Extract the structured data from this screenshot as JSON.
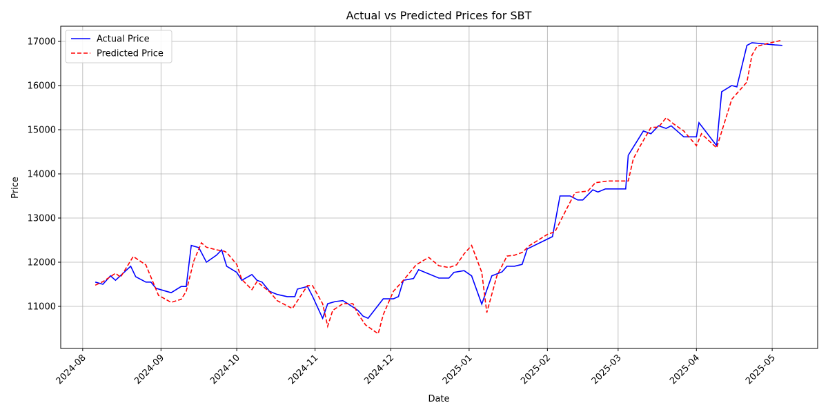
{
  "chart_data": {
    "type": "line",
    "title": "Actual vs Predicted Prices for SBT",
    "x_label": "Date",
    "y_label": "Price",
    "xlim": [
      -8.7,
      291
    ],
    "xticks": [
      {
        "value": 0,
        "label": "2024-08"
      },
      {
        "value": 31,
        "label": "2024-09"
      },
      {
        "value": 61,
        "label": "2024-10"
      },
      {
        "value": 92,
        "label": "2024-11"
      },
      {
        "value": 122,
        "label": "2024-12"
      },
      {
        "value": 153,
        "label": "2025-01"
      },
      {
        "value": 184,
        "label": "2025-02"
      },
      {
        "value": 212,
        "label": "2025-03"
      },
      {
        "value": 243,
        "label": "2025-04"
      },
      {
        "value": 273,
        "label": "2025-05"
      }
    ],
    "ylim": [
      10047,
      17344
    ],
    "yticks": [
      11000,
      12000,
      13000,
      14000,
      15000,
      16000,
      17000
    ],
    "grid": true,
    "legend": "upper left",
    "series": [
      {
        "name": "Actual Price",
        "color": "#0000ff",
        "linestyle": "solid",
        "x": [
          5,
          8,
          11,
          13,
          19,
          21,
          25,
          27,
          29,
          35,
          39,
          41,
          43,
          46,
          49,
          53,
          55,
          57,
          61,
          63,
          67,
          69,
          71,
          74,
          77,
          81,
          84,
          85,
          89,
          91,
          95,
          97,
          100,
          103,
          105,
          109,
          111,
          113,
          116,
          119,
          123,
          125,
          127,
          131,
          133,
          141,
          145,
          147,
          151,
          154,
          158,
          162,
          166,
          168,
          171,
          174,
          176,
          186,
          189,
          193,
          196,
          198,
          202,
          204,
          207,
          215,
          216,
          222,
          225,
          228,
          231,
          233,
          238,
          243,
          244,
          251,
          253,
          257,
          259,
          263,
          265,
          274,
          277
        ],
        "values": [
          11550,
          11500,
          11690,
          11590,
          11910,
          11670,
          11550,
          11550,
          11410,
          11310,
          11450,
          11450,
          12380,
          12330,
          12000,
          12160,
          12280,
          11910,
          11770,
          11590,
          11720,
          11590,
          11550,
          11340,
          11270,
          11220,
          11220,
          11390,
          11450,
          11230,
          10730,
          11060,
          11110,
          11130,
          11060,
          10910,
          10780,
          10730,
          10950,
          11170,
          11170,
          11220,
          11590,
          11630,
          11830,
          11640,
          11640,
          11770,
          11810,
          11690,
          11050,
          11690,
          11780,
          11910,
          11910,
          11950,
          12300,
          12580,
          13500,
          13500,
          13410,
          13410,
          13640,
          13590,
          13660,
          13660,
          14420,
          14970,
          14910,
          15090,
          15030,
          15090,
          14840,
          14840,
          15160,
          14640,
          15860,
          16000,
          15970,
          16910,
          16970,
          16920,
          16910
        ]
      },
      {
        "name": "Predicted Price",
        "color": "#ff0000",
        "linestyle": "dashed",
        "x": [
          5,
          8,
          13,
          15,
          20,
          25,
          30,
          35,
          39,
          41,
          44,
          47,
          49,
          53,
          56,
          57,
          61,
          63,
          67,
          69,
          74,
          77,
          83,
          89,
          91,
          95,
          97,
          99,
          103,
          107,
          109,
          112,
          117,
          119,
          123,
          127,
          132,
          137,
          141,
          145,
          148,
          151,
          154,
          158,
          160,
          164,
          168,
          171,
          174,
          177,
          184,
          187,
          192,
          195,
          200,
          203,
          208,
          211,
          216,
          218,
          221,
          225,
          228,
          231,
          234,
          238,
          243,
          245,
          251,
          257,
          263,
          265,
          267,
          271,
          277
        ],
        "values": [
          11480,
          11560,
          11750,
          11660,
          12130,
          11940,
          11250,
          11090,
          11160,
          11340,
          12030,
          12440,
          12340,
          12280,
          12250,
          12220,
          11950,
          11610,
          11380,
          11560,
          11330,
          11130,
          10950,
          11470,
          11470,
          11060,
          10550,
          10910,
          11060,
          11060,
          10830,
          10580,
          10380,
          10810,
          11340,
          11590,
          11940,
          12110,
          11920,
          11880,
          11940,
          12190,
          12380,
          11770,
          10860,
          11690,
          12140,
          12160,
          12220,
          12380,
          12630,
          12690,
          13250,
          13580,
          13610,
          13800,
          13840,
          13840,
          13840,
          14340,
          14660,
          15050,
          15060,
          15270,
          15130,
          14970,
          14640,
          14910,
          14590,
          15690,
          16080,
          16690,
          16890,
          16950,
          17030
        ]
      }
    ]
  }
}
